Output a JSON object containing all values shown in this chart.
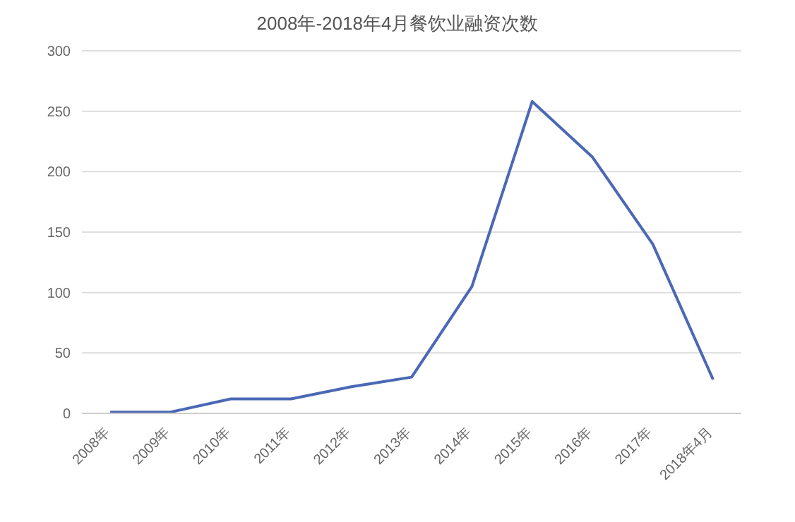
{
  "chart_data": {
    "type": "line",
    "title": "2008年-2018年4月餐饮业融资次数",
    "categories": [
      "2008年",
      "2009年",
      "2010年",
      "2011年",
      "2012年",
      "2013年",
      "2014年",
      "2015年",
      "2016年",
      "2017年",
      "2018年4月"
    ],
    "series": [
      {
        "color": "#4a68b5",
        "values": [
          1,
          1,
          12,
          12,
          22,
          30,
          105,
          258,
          212,
          140,
          28
        ]
      }
    ],
    "ylim": [
      0,
      300
    ],
    "yticks": [
      0,
      50,
      100,
      150,
      200,
      250,
      300
    ],
    "grid": "y",
    "legend": false,
    "marker": "none",
    "line_style": "solid"
  }
}
